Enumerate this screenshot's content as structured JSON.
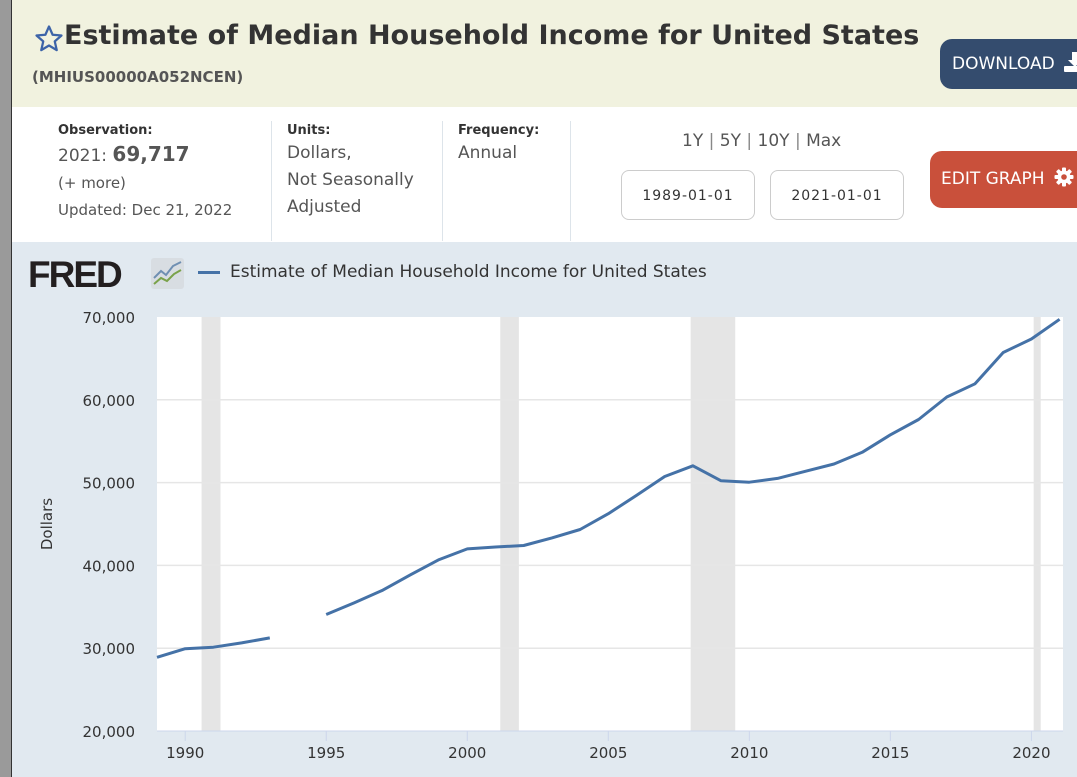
{
  "header": {
    "title": "Estimate of Median Household Income for United States",
    "series_id": "(MHIUS00000A052NCEN)",
    "download_label": "DOWNLOAD"
  },
  "info": {
    "observation_label": "Observation:",
    "observation_date": "2021:",
    "observation_value": "69,717",
    "more": "(+ more)",
    "updated": "Updated: Dec 21, 2022",
    "units_label": "Units:",
    "units_lines": [
      "Dollars,",
      "Not Seasonally",
      "Adjusted"
    ],
    "frequency_label": "Frequency:",
    "frequency": "Annual"
  },
  "ranges": [
    "1Y",
    "5Y",
    "10Y",
    "Max"
  ],
  "start_date": "1989-01-01",
  "end_date": "2021-01-01",
  "edit_label": "EDIT GRAPH",
  "logo": "FRED",
  "colors": {
    "line": "#4572a7",
    "recession": "#e5e5e5",
    "accent_dl": "#344c6e",
    "accent_edit": "#c9503b"
  },
  "chart_data": {
    "type": "line",
    "title": "",
    "legend": "Estimate of Median Household Income for United States",
    "ylabel": "Dollars",
    "xlabel": "",
    "ylim": [
      20000,
      70000
    ],
    "xlim": [
      1989,
      2021
    ],
    "yticks": [
      "20,000",
      "30,000",
      "40,000",
      "50,000",
      "60,000",
      "70,000"
    ],
    "ytick_values": [
      20000,
      30000,
      40000,
      50000,
      60000,
      70000
    ],
    "xticks": [
      "1990",
      "1995",
      "2000",
      "2005",
      "2010",
      "2015",
      "2020"
    ],
    "grid": true,
    "recessions": [
      [
        1990.58,
        1991.25
      ],
      [
        2001.17,
        2001.83
      ],
      [
        2007.92,
        2009.5
      ],
      [
        2020.08,
        2020.33
      ]
    ],
    "series": [
      {
        "name": "Estimate of Median Household Income for United States",
        "x": [
          1989,
          1990,
          1991,
          1992,
          1993,
          1994,
          1995,
          1996,
          1997,
          1998,
          1999,
          2000,
          2001,
          2002,
          2003,
          2004,
          2005,
          2006,
          2007,
          2008,
          2009,
          2010,
          2011,
          2012,
          2013,
          2014,
          2015,
          2016,
          2017,
          2018,
          2019,
          2020,
          2021
        ],
        "values": [
          28906,
          29943,
          30126,
          30636,
          31241,
          null,
          34076,
          35492,
          37005,
          38885,
          40696,
          41990,
          42228,
          42409,
          43318,
          44334,
          46242,
          48451,
          50740,
          52029,
          50221,
          50046,
          50502,
          51371,
          52250,
          53657,
          55775,
          57617,
          60336,
          61937,
          65712,
          67340,
          69717
        ]
      }
    ]
  }
}
